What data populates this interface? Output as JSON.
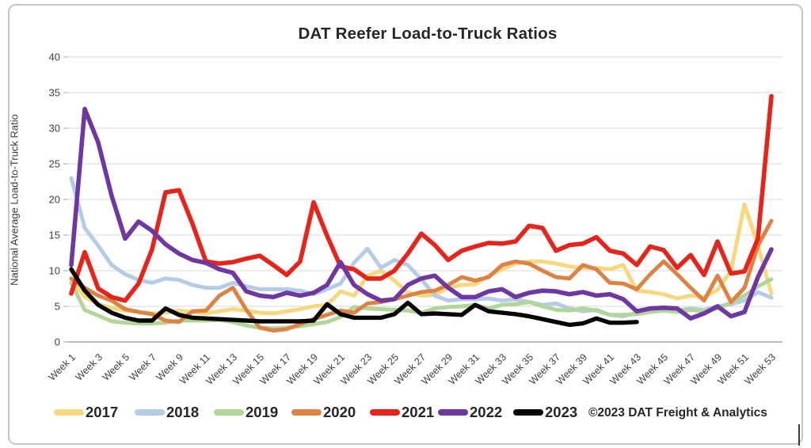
{
  "title": "DAT Reefer Load-to-Truck Ratios",
  "y_axis_label": "National Average Load-to-Truck Ratio",
  "copyright": "©2023 DAT Freight & Analytics",
  "chart_data": {
    "type": "line",
    "title": "DAT Reefer Load-to-Truck Ratios",
    "xlabel": "",
    "ylabel": "National Average Load-to-Truck Ratio",
    "x_unit": "week",
    "x_range": [
      1,
      53
    ],
    "ylim": [
      0,
      40
    ],
    "y_ticks": [
      0,
      5,
      10,
      15,
      20,
      25,
      30,
      35,
      40
    ],
    "x_tick_weeks": [
      1,
      3,
      5,
      7,
      9,
      11,
      13,
      15,
      17,
      19,
      21,
      23,
      25,
      27,
      29,
      31,
      33,
      35,
      37,
      39,
      41,
      43,
      45,
      47,
      49,
      51,
      53
    ],
    "x_tick_labels": [
      "Week 1",
      "Week 3",
      "Week 5",
      "Week 7",
      "Week 9",
      "Week 11",
      "Week 13",
      "Week 15",
      "Week 17",
      "Week 19",
      "Week 21",
      "Week 23",
      "Week 25",
      "Week 27",
      "Week 29",
      "Week 31",
      "Week 33",
      "Week 35",
      "Week 37",
      "Week 39",
      "Week 41",
      "Week 43",
      "Week 45",
      "Week 47",
      "Week 49",
      "Week 51",
      "Week 53"
    ],
    "grid": true,
    "legend_position": "bottom",
    "series": [
      {
        "name": "2017",
        "color": "#f6d87e",
        "values": [
          8.9,
          6.3,
          5.3,
          4.8,
          4.4,
          4.2,
          4.0,
          4.1,
          4.4,
          4.2,
          4.0,
          4.3,
          4.6,
          4.4,
          4.1,
          4.0,
          4.3,
          4.6,
          5.0,
          5.2,
          7.1,
          6.5,
          9.3,
          10.0,
          8.6,
          6.9,
          6.5,
          6.6,
          7.6,
          8.0,
          8.1,
          9.3,
          10.2,
          11.0,
          11.3,
          11.3,
          11.0,
          10.6,
          10.4,
          10.4,
          10.2,
          10.8,
          7.2,
          7.0,
          6.7,
          6.1,
          6.5,
          6.3,
          7.3,
          10.0,
          19.3,
          13.5,
          6.8
        ]
      },
      {
        "name": "2018",
        "color": "#b4cce6",
        "values": [
          23.0,
          16.0,
          13.5,
          10.8,
          9.5,
          8.7,
          8.3,
          8.9,
          8.7,
          8.0,
          7.6,
          7.6,
          8.3,
          7.8,
          7.4,
          7.4,
          7.4,
          7.2,
          6.7,
          7.4,
          8.2,
          11.1,
          13.1,
          10.4,
          11.5,
          10.8,
          8.8,
          6.5,
          5.8,
          6.0,
          6.0,
          6.1,
          5.8,
          6.0,
          5.6,
          5.2,
          5.4,
          4.7,
          4.3,
          4.5,
          3.8,
          3.6,
          4.1,
          4.4,
          4.6,
          4.4,
          4.7,
          4.5,
          5.0,
          5.3,
          5.8,
          7.0,
          6.2
        ]
      },
      {
        "name": "2019",
        "color": "#b2d598",
        "values": [
          8.3,
          4.5,
          3.7,
          2.9,
          2.7,
          2.6,
          2.6,
          2.7,
          3.0,
          3.0,
          3.0,
          3.1,
          2.8,
          2.3,
          2.0,
          1.9,
          2.0,
          2.2,
          2.5,
          2.8,
          3.5,
          4.9,
          4.7,
          4.6,
          4.5,
          4.4,
          4.1,
          4.7,
          4.9,
          5.0,
          5.2,
          4.7,
          5.2,
          5.3,
          5.6,
          5.0,
          4.5,
          4.4,
          4.7,
          4.4,
          3.8,
          3.8,
          3.9,
          4.2,
          4.4,
          4.2,
          4.5,
          4.3,
          4.7,
          5.5,
          6.5,
          7.8,
          8.8
        ]
      },
      {
        "name": "2020",
        "color": "#de8244",
        "values": [
          8.9,
          7.6,
          6.5,
          5.8,
          4.6,
          4.2,
          3.9,
          3.0,
          2.8,
          4.3,
          4.4,
          6.5,
          7.6,
          4.5,
          2.0,
          1.6,
          1.8,
          2.5,
          3.2,
          3.8,
          4.4,
          4.1,
          5.4,
          5.6,
          6.0,
          6.5,
          7.0,
          7.2,
          8.0,
          9.1,
          8.6,
          9.1,
          10.8,
          11.3,
          11.0,
          10.0,
          9.1,
          8.9,
          10.8,
          10.2,
          8.3,
          8.2,
          7.4,
          9.5,
          11.3,
          9.5,
          7.6,
          5.8,
          9.3,
          5.6,
          7.6,
          13.5,
          17.0
        ]
      },
      {
        "name": "2021",
        "color": "#e8231a",
        "values": [
          6.8,
          12.6,
          7.5,
          6.3,
          5.8,
          8.2,
          13.0,
          21.0,
          21.3,
          16.6,
          11.3,
          11.0,
          11.2,
          11.7,
          12.1,
          10.8,
          9.4,
          11.3,
          19.6,
          14.9,
          10.6,
          10.2,
          8.9,
          8.9,
          10.0,
          12.4,
          15.2,
          13.6,
          11.5,
          12.8,
          13.4,
          13.9,
          13.8,
          14.1,
          16.3,
          16.0,
          12.8,
          13.6,
          13.8,
          14.7,
          12.8,
          12.4,
          10.8,
          13.4,
          12.9,
          10.4,
          12.2,
          9.4,
          14.1,
          9.6,
          9.9,
          14.5,
          34.5
        ]
      },
      {
        "name": "2022",
        "color": "#6f37a2",
        "values": [
          10.8,
          32.7,
          28.0,
          20.5,
          14.5,
          16.9,
          15.6,
          13.7,
          12.4,
          11.5,
          11.1,
          10.2,
          9.7,
          7.1,
          6.5,
          6.3,
          6.9,
          6.5,
          6.9,
          8.0,
          11.2,
          8.0,
          6.7,
          5.8,
          6.0,
          8.0,
          8.9,
          9.3,
          7.6,
          6.3,
          6.3,
          7.1,
          7.4,
          6.3,
          6.9,
          7.2,
          7.1,
          6.7,
          7.0,
          6.5,
          6.7,
          6.0,
          4.3,
          4.7,
          4.8,
          4.7,
          3.3,
          4.0,
          5.0,
          3.6,
          4.2,
          9.1,
          13.0
        ]
      },
      {
        "name": "2023",
        "color": "#050505",
        "values": [
          10.2,
          7.2,
          5.2,
          4.1,
          3.4,
          3.0,
          3.0,
          4.7,
          3.8,
          3.4,
          3.3,
          3.2,
          3.1,
          3.0,
          2.9,
          2.9,
          2.9,
          2.9,
          3.0,
          5.3,
          3.9,
          3.4,
          3.4,
          3.4,
          3.9,
          5.5,
          3.9,
          4.0,
          3.9,
          3.8,
          5.2,
          4.3,
          4.1,
          3.9,
          3.6,
          3.2,
          2.8,
          2.4,
          2.6,
          3.3,
          2.7,
          2.7,
          2.8
        ]
      }
    ]
  }
}
